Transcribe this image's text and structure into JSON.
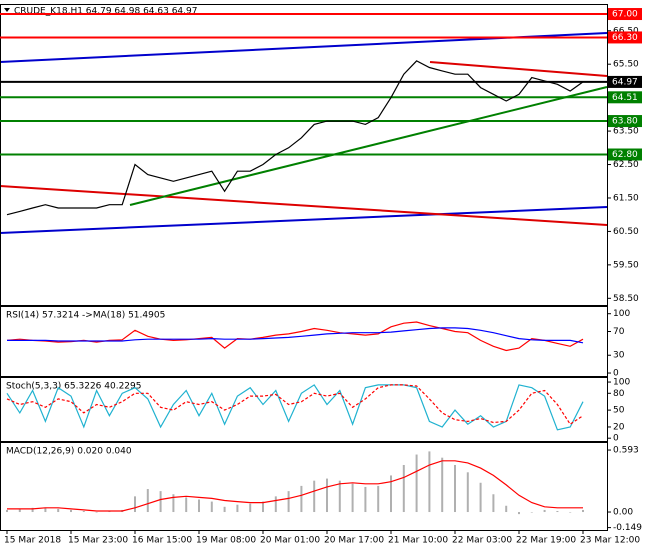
{
  "chart_data": [
    {
      "type": "line",
      "title": "CRUDE_K18,H1  64.79 64.98 64.63 64.97",
      "categories": [
        "15 Mar 2018",
        null,
        null,
        null,
        null,
        "15 Mar 23:00",
        null,
        null,
        null,
        null,
        "16 Mar 15:00",
        null,
        null,
        null,
        null,
        "19 Mar 08:00",
        null,
        null,
        null,
        null,
        "20 Mar 01:00",
        null,
        null,
        null,
        null,
        "20 Mar 17:00",
        null,
        null,
        null,
        null,
        "21 Mar 10:00",
        null,
        null,
        null,
        null,
        "22 Mar 03:00",
        null,
        null,
        null,
        null,
        "22 Mar 19:00",
        null,
        null,
        null,
        null,
        "23 Mar 12:00"
      ],
      "series": [
        {
          "color": "#000000",
          "values": [
            61.0,
            61.1,
            61.2,
            61.3,
            61.2,
            61.2,
            61.2,
            61.2,
            61.3,
            61.3,
            62.5,
            62.2,
            62.1,
            62.0,
            62.1,
            62.2,
            62.3,
            61.7,
            62.3,
            62.3,
            62.5,
            62.8,
            63.0,
            63.3,
            63.7,
            63.8,
            63.8,
            63.8,
            63.7,
            63.9,
            64.5,
            65.2,
            65.6,
            65.4,
            65.3,
            65.2,
            65.2,
            64.8,
            64.6,
            64.4,
            64.6,
            65.1,
            65.0,
            64.9,
            64.7,
            64.97
          ]
        }
      ],
      "ylim": [
        58.3,
        67.3
      ],
      "yticks": [
        {
          "value": 66.5,
          "label": "66.50"
        },
        {
          "value": 65.5,
          "label": "65.50"
        },
        {
          "value": 63.5,
          "label": "63.50"
        },
        {
          "value": 62.5,
          "label": "62.50"
        },
        {
          "value": 61.5,
          "label": "61.50"
        },
        {
          "value": 60.5,
          "label": "60.50"
        },
        {
          "value": 59.5,
          "label": "59.50"
        },
        {
          "value": 58.5,
          "label": "58.50"
        }
      ],
      "levels": [
        {
          "value": 67.0,
          "label": "67.00",
          "color": "#ff0000"
        },
        {
          "value": 66.3,
          "label": "66.30",
          "color": "#ff0000"
        },
        {
          "value": 64.97,
          "label": "64.97",
          "color": "#000000"
        },
        {
          "value": 64.51,
          "label": "64.51",
          "color": "#008000"
        },
        {
          "value": 63.8,
          "label": "63.80",
          "color": "#008000"
        },
        {
          "value": 62.8,
          "label": "62.80",
          "color": "#008000"
        }
      ]
    },
    {
      "type": "line",
      "title": "RSI(14) 57.3214 ->MA(18) 51.4905",
      "series": [
        {
          "color": "#ff0000",
          "values": [
            55,
            57,
            55,
            54,
            52,
            53,
            55,
            52,
            55,
            56,
            72,
            62,
            57,
            55,
            56,
            58,
            60,
            42,
            58,
            57,
            60,
            64,
            66,
            70,
            75,
            72,
            68,
            66,
            64,
            66,
            78,
            84,
            86,
            80,
            75,
            70,
            68,
            55,
            45,
            38,
            42,
            58,
            55,
            50,
            45,
            57
          ]
        },
        {
          "color": "#0000ff",
          "values": [
            55,
            55,
            55,
            55,
            54,
            54,
            54,
            54,
            54,
            54,
            56,
            57,
            57,
            57,
            57,
            57,
            58,
            57,
            57,
            57,
            58,
            59,
            60,
            62,
            64,
            66,
            67,
            68,
            68,
            68,
            69,
            71,
            73,
            75,
            76,
            76,
            75,
            72,
            68,
            63,
            58,
            56,
            55,
            55,
            55,
            51
          ]
        }
      ],
      "ylim": [
        -5,
        113
      ],
      "yticks": [
        100,
        70,
        30,
        0
      ]
    },
    {
      "type": "line",
      "title": "Stoch(5,3,3) 65.3226 40.2295",
      "series": [
        {
          "color": "#20b2d0",
          "values": [
            80,
            45,
            85,
            30,
            90,
            75,
            20,
            85,
            40,
            80,
            90,
            70,
            20,
            60,
            85,
            40,
            80,
            25,
            75,
            90,
            60,
            85,
            30,
            80,
            95,
            60,
            85,
            25,
            90,
            95,
            95,
            95,
            90,
            30,
            20,
            50,
            25,
            40,
            20,
            30,
            95,
            90,
            75,
            15,
            20,
            65
          ]
        },
        {
          "color": "#ff0000",
          "dash": true,
          "values": [
            70,
            60,
            65,
            55,
            70,
            65,
            45,
            60,
            55,
            65,
            80,
            80,
            55,
            50,
            65,
            60,
            65,
            50,
            60,
            75,
            75,
            78,
            60,
            65,
            80,
            75,
            80,
            55,
            70,
            90,
            95,
            95,
            93,
            70,
            45,
            33,
            30,
            35,
            28,
            30,
            50,
            80,
            85,
            60,
            25,
            40
          ]
        }
      ],
      "ylim": [
        -5,
        109
      ],
      "yticks": [
        100,
        80,
        50,
        20,
        0
      ]
    },
    {
      "type": "bar",
      "title": "MACD(12,26,9) 0.020 0.040",
      "series": [
        {
          "color": "#b0b0b0",
          "values": [
            0.02,
            0.03,
            0.04,
            0.04,
            0.03,
            0.02,
            0.01,
            0.0,
            0.01,
            0.02,
            0.15,
            0.22,
            0.2,
            0.17,
            0.14,
            0.12,
            0.1,
            0.05,
            0.07,
            0.08,
            0.1,
            0.15,
            0.2,
            0.25,
            0.3,
            0.32,
            0.3,
            0.27,
            0.24,
            0.25,
            0.35,
            0.45,
            0.55,
            0.58,
            0.52,
            0.45,
            0.38,
            0.28,
            0.17,
            0.06,
            -0.02,
            0.0,
            0.02,
            0.01,
            0.0,
            0.02
          ]
        },
        {
          "color": "#ff0000",
          "type": "line",
          "values": [
            0.03,
            0.03,
            0.03,
            0.04,
            0.04,
            0.03,
            0.02,
            0.01,
            0.01,
            0.01,
            0.04,
            0.08,
            0.12,
            0.14,
            0.15,
            0.14,
            0.13,
            0.11,
            0.1,
            0.09,
            0.09,
            0.11,
            0.13,
            0.16,
            0.2,
            0.24,
            0.27,
            0.28,
            0.27,
            0.27,
            0.29,
            0.33,
            0.39,
            0.45,
            0.49,
            0.49,
            0.47,
            0.42,
            0.35,
            0.26,
            0.16,
            0.09,
            0.05,
            0.04,
            0.04,
            0.04
          ]
        }
      ],
      "ylim": [
        -0.172,
        0.67
      ],
      "yticks": [
        0.593,
        {
          "value": 0,
          "label": "0.00"
        },
        -0.149
      ]
    }
  ]
}
